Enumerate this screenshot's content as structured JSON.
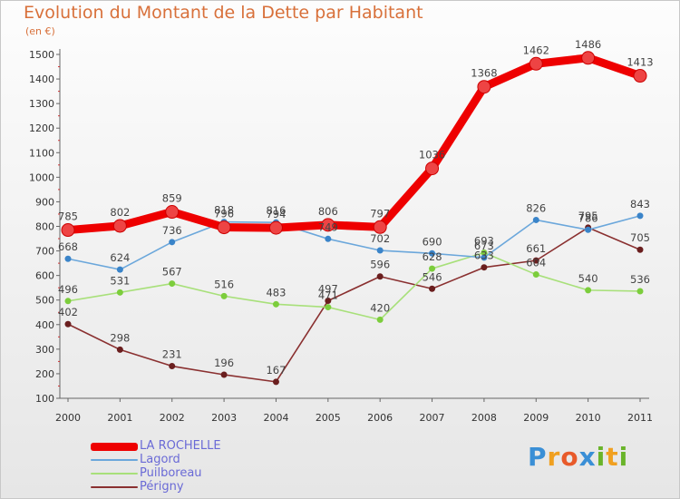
{
  "title": "Evolution du Montant de la Dette par Habitant",
  "subtitle": "(en €)",
  "brand": {
    "letters": [
      {
        "ch": "P",
        "color": "#3a8fd6"
      },
      {
        "ch": "r",
        "color": "#f0a020"
      },
      {
        "ch": "o",
        "color": "#e85a2a"
      },
      {
        "ch": "x",
        "color": "#3a8fd6"
      },
      {
        "ch": "i",
        "color": "#6ab42a"
      },
      {
        "ch": "t",
        "color": "#f0a020"
      },
      {
        "ch": "i",
        "color": "#6ab42a"
      }
    ]
  },
  "chart_data": {
    "type": "line",
    "x": [
      "2000",
      "2001",
      "2002",
      "2003",
      "2004",
      "2005",
      "2006",
      "2007",
      "2008",
      "2009",
      "2010",
      "2011"
    ],
    "ylim": [
      100,
      1500
    ],
    "yticks": [
      100,
      200,
      300,
      400,
      500,
      600,
      700,
      800,
      900,
      1000,
      1100,
      1200,
      1300,
      1400,
      1500
    ],
    "grid": false,
    "legend_position": "bottom-left",
    "series": [
      {
        "name": "LA ROCHELLE",
        "color": "#ee0000",
        "marker": "#ee4444",
        "width": 9,
        "markerR": 7,
        "values": [
          785,
          802,
          859,
          796,
          794,
          806,
          797,
          1036,
          1368,
          1462,
          1486,
          1413
        ]
      },
      {
        "name": "Lagord",
        "color": "#6ba7db",
        "marker": "#3a84c9",
        "width": 1.6,
        "markerR": 3.5,
        "values": [
          668,
          624,
          736,
          818,
          816,
          749,
          702,
          690,
          673,
          826,
          786,
          843
        ]
      },
      {
        "name": "Puilboreau",
        "color": "#a8e07a",
        "marker": "#7ccd3c",
        "width": 1.6,
        "markerR": 3.5,
        "values": [
          496,
          531,
          567,
          516,
          483,
          471,
          420,
          628,
          693,
          604,
          540,
          536
        ]
      },
      {
        "name": "Périgny",
        "color": "#8a3030",
        "marker": "#6a1e1e",
        "width": 1.6,
        "markerR": 3.5,
        "values": [
          402,
          298,
          231,
          196,
          167,
          497,
          596,
          546,
          633,
          661,
          795,
          705
        ]
      }
    ]
  }
}
